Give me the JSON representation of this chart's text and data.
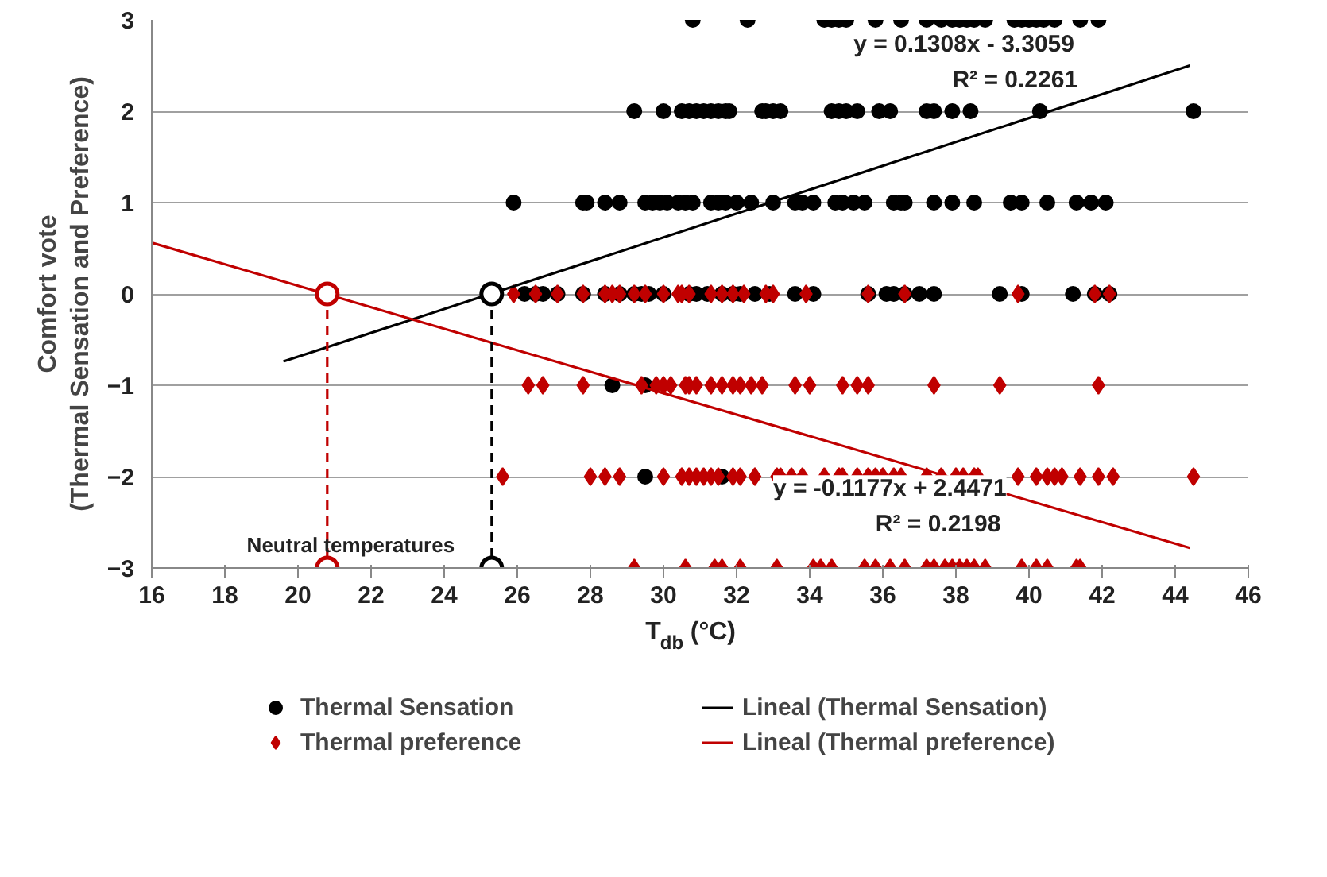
{
  "chart_data": {
    "type": "scatter",
    "xlabel": "T$_{db}$ (°C)",
    "ylabel": "Comfort vote\n(Thermal Sensation and Preference)",
    "xlim": [
      16,
      46
    ],
    "xticks": [
      16,
      18,
      20,
      22,
      24,
      26,
      28,
      30,
      32,
      34,
      36,
      38,
      40,
      42,
      44,
      46
    ],
    "ylim": [
      -3,
      3
    ],
    "yticks": [
      -3,
      -2,
      -1,
      0,
      1,
      2,
      3
    ],
    "grid": "y",
    "legend": "bottom",
    "annotations": [
      "y = 0.1308x - 3.3059",
      "R² = 0.2261",
      "y = -0.1177x + 2.4471",
      "R² = 0.2198",
      "Neutral temperatures"
    ],
    "series": [
      {
        "name": "Thermal Sensation",
        "marker": "circle",
        "color": "#000000",
        "x": [
          30.8,
          32.3,
          34.4,
          34.6,
          34.8,
          35.0,
          35.8,
          36.5,
          37.2,
          37.6,
          37.9,
          38.1,
          38.3,
          38.5,
          38.8,
          39.6,
          39.8,
          40.0,
          40.2,
          40.4,
          40.7,
          41.4,
          41.9,
          29.2,
          30.0,
          30.5,
          30.7,
          30.9,
          31.1,
          31.3,
          31.5,
          31.7,
          31.8,
          32.7,
          32.8,
          33.0,
          33.2,
          34.6,
          34.8,
          35.0,
          35.3,
          35.9,
          36.2,
          37.2,
          37.4,
          37.9,
          38.4,
          40.3,
          44.5,
          25.9,
          27.8,
          27.9,
          28.4,
          28.8,
          29.5,
          29.7,
          29.9,
          30.1,
          30.4,
          30.6,
          30.8,
          31.3,
          31.5,
          31.7,
          32.0,
          32.4,
          33.0,
          33.6,
          33.8,
          34.1,
          34.7,
          34.9,
          35.2,
          35.5,
          36.3,
          36.5,
          36.6,
          37.4,
          37.9,
          38.5,
          39.5,
          39.8,
          40.5,
          41.3,
          41.7,
          42.1,
          26.2,
          26.5,
          26.7,
          27.1,
          27.8,
          28.4,
          28.8,
          29.2,
          29.4,
          29.6,
          30.0,
          30.7,
          30.9,
          31.2,
          31.6,
          31.9,
          32.1,
          32.5,
          32.9,
          33.6,
          34.1,
          35.6,
          36.1,
          36.3,
          36.6,
          37.0,
          37.4,
          39.2,
          39.8,
          41.2,
          41.8,
          42.2,
          28.6,
          29.5,
          29.5,
          31.6
        ],
        "values": [
          3,
          3,
          3,
          3,
          3,
          3,
          3,
          3,
          3,
          3,
          3,
          3,
          3,
          3,
          3,
          3,
          3,
          3,
          3,
          3,
          3,
          3,
          3,
          2,
          2,
          2,
          2,
          2,
          2,
          2,
          2,
          2,
          2,
          2,
          2,
          2,
          2,
          2,
          2,
          2,
          2,
          2,
          2,
          2,
          2,
          2,
          2,
          2,
          2,
          1,
          1,
          1,
          1,
          1,
          1,
          1,
          1,
          1,
          1,
          1,
          1,
          1,
          1,
          1,
          1,
          1,
          1,
          1,
          1,
          1,
          1,
          1,
          1,
          1,
          1,
          1,
          1,
          1,
          1,
          1,
          1,
          1,
          1,
          1,
          1,
          1,
          0,
          0,
          0,
          0,
          0,
          0,
          0,
          0,
          0,
          0,
          0,
          0,
          0,
          0,
          0,
          0,
          0,
          0,
          0,
          0,
          0,
          0,
          0,
          0,
          0,
          0,
          0,
          0,
          0,
          0,
          0,
          0,
          -1,
          -1,
          -2,
          -2
        ]
      },
      {
        "name": "Thermal preference",
        "marker": "diamond",
        "color": "#c00000",
        "x": [
          25.9,
          26.5,
          27.1,
          27.8,
          28.4,
          28.6,
          28.8,
          29.2,
          29.5,
          30.0,
          30.4,
          30.5,
          30.7,
          31.3,
          31.6,
          31.9,
          32.2,
          32.8,
          33.0,
          33.9,
          35.6,
          36.6,
          39.7,
          41.8,
          42.2,
          26.3,
          26.7,
          27.8,
          29.4,
          29.8,
          30.0,
          30.2,
          30.6,
          30.7,
          30.9,
          31.3,
          31.6,
          31.9,
          32.1,
          32.4,
          32.7,
          33.6,
          34.0,
          34.9,
          35.3,
          35.6,
          37.4,
          39.2,
          41.9,
          25.6,
          28.0,
          28.4,
          28.8,
          30.0,
          30.5,
          30.7,
          30.9,
          31.1,
          31.3,
          31.5,
          31.9,
          32.1,
          32.5,
          33.1,
          33.2,
          33.5,
          33.8,
          34.4,
          34.8,
          34.9,
          35.3,
          35.6,
          35.8,
          36.0,
          36.3,
          36.5,
          37.2,
          37.6,
          38.0,
          38.2,
          38.5,
          38.6,
          39.7,
          40.2,
          40.5,
          40.7,
          40.9,
          41.4,
          41.9,
          42.3,
          44.5,
          29.2,
          30.6,
          31.4,
          31.6,
          32.1,
          33.1,
          34.1,
          34.3,
          34.6,
          35.5,
          35.8,
          36.2,
          36.6,
          37.2,
          37.4,
          37.7,
          37.9,
          38.1,
          38.3,
          38.5,
          38.8,
          39.8,
          40.2,
          40.5,
          41.3,
          41.4
        ],
        "values": [
          0,
          0,
          0,
          0,
          0,
          0,
          0,
          0,
          0,
          0,
          0,
          0,
          0,
          0,
          0,
          0,
          0,
          0,
          0,
          0,
          0,
          0,
          0,
          0,
          0,
          -1,
          -1,
          -1,
          -1,
          -1,
          -1,
          -1,
          -1,
          -1,
          -1,
          -1,
          -1,
          -1,
          -1,
          -1,
          -1,
          -1,
          -1,
          -1,
          -1,
          -1,
          -1,
          -1,
          -1,
          -2,
          -2,
          -2,
          -2,
          -2,
          -2,
          -2,
          -2,
          -2,
          -2,
          -2,
          -2,
          -2,
          -2,
          -2,
          -2,
          -2,
          -2,
          -2,
          -2,
          -2,
          -2,
          -2,
          -2,
          -2,
          -2,
          -2,
          -2,
          -2,
          -2,
          -2,
          -2,
          -2,
          -2,
          -2,
          -2,
          -2,
          -2,
          -2,
          -2,
          -2,
          -2,
          -3,
          -3,
          -3,
          -3,
          -3,
          -3,
          -3,
          -3,
          -3,
          -3,
          -3,
          -3,
          -3,
          -3,
          -3,
          -3,
          -3,
          -3,
          -3,
          -3,
          -3,
          -3,
          -3,
          -3,
          -3,
          -3
        ]
      },
      {
        "name": "Lineal (Thermal Sensation)",
        "type": "line",
        "color": "#000000",
        "x": [
          19.6,
          44.4
        ],
        "values": [
          -0.74,
          2.5
        ]
      },
      {
        "name": "Lineal (Thermal preference)",
        "type": "line",
        "color": "#c00000",
        "x": [
          16,
          44.4
        ],
        "values": [
          0.56,
          -2.78
        ]
      },
      {
        "type": "line",
        "color": "#000000",
        "line_style": "dashed",
        "marker": "circle",
        "x": [
          25.3,
          25.3
        ],
        "values": [
          0,
          -3
        ]
      },
      {
        "type": "line",
        "color": "#c00000",
        "line_style": "dashed",
        "marker": "circle",
        "x": [
          20.8,
          20.8
        ],
        "values": [
          0,
          -3
        ]
      }
    ]
  }
}
